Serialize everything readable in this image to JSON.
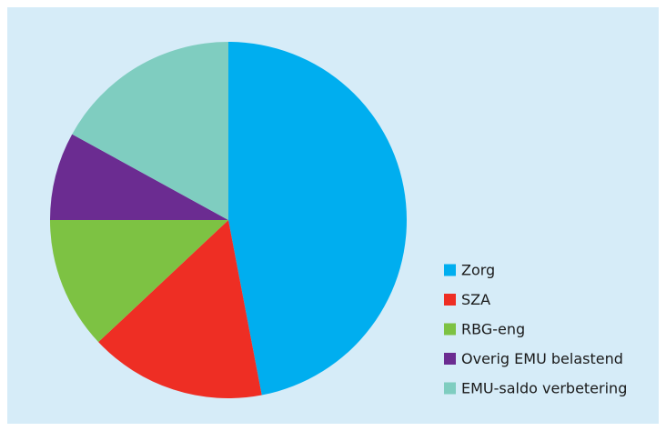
{
  "chart_data": {
    "type": "pie",
    "categories": [
      "Zorg",
      "SZA",
      "RBG-eng",
      "Overig EMU belastend",
      "EMU-saldo verbetering"
    ],
    "values": [
      47,
      16,
      12,
      8,
      17
    ],
    "colors": [
      "#00aeef",
      "#ee2e24",
      "#7dc243",
      "#6b2c91",
      "#7fcdc0"
    ]
  }
}
